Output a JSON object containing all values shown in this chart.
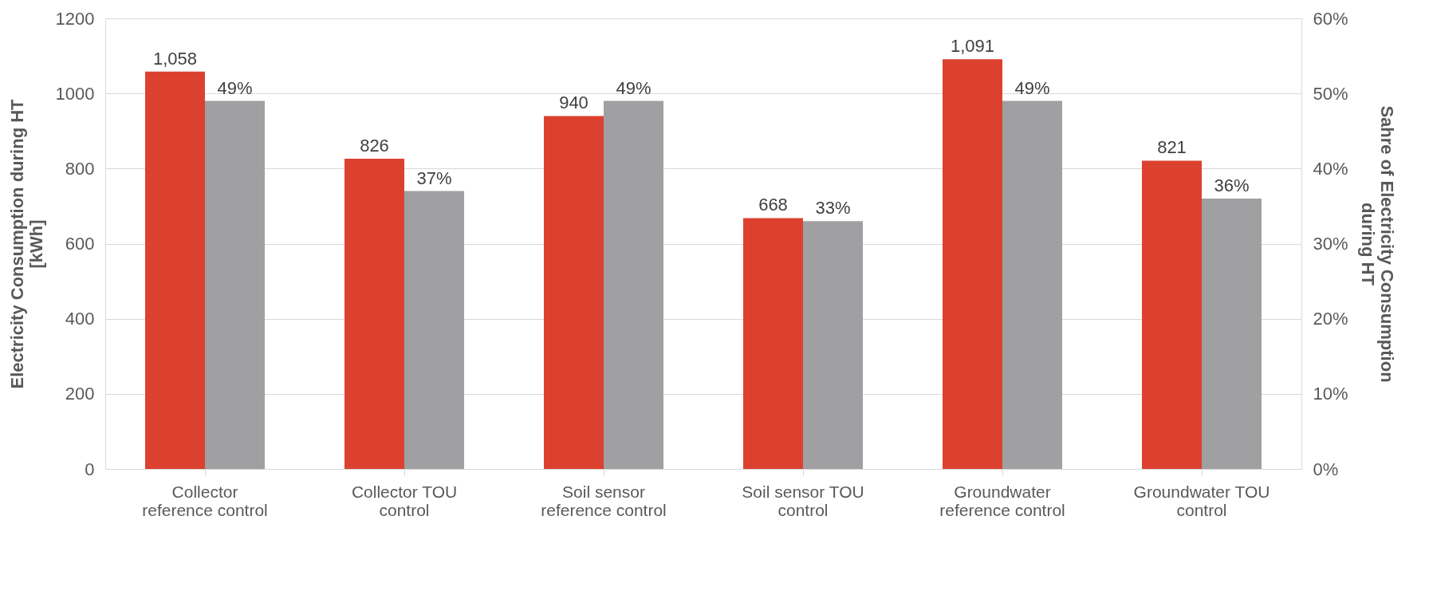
{
  "chart_data": {
    "type": "bar",
    "ylabel": "Electricity Consumption during HT [kWh]",
    "y2label": "Sahre of Electricity Consumption during HT",
    "categories": [
      "Collector reference control",
      "Collector TOU control",
      "Soil sensor reference control",
      "Soil sensor TOU control",
      "Groundwater reference control",
      "Groundwater TOU control"
    ],
    "series": [
      {
        "color": "#dc4130",
        "values": [
          1058,
          826,
          940,
          668,
          1091,
          821
        ],
        "value_labels": [
          "1,058",
          "826",
          "940",
          "668",
          "1,091",
          "821"
        ]
      },
      {
        "color": "#a0a0a2",
        "axis": "y2",
        "values": [
          49,
          37,
          49,
          33,
          49,
          36
        ],
        "value_labels": [
          "49%",
          "37%",
          "49%",
          "33%",
          "49%",
          "36%"
        ]
      }
    ],
    "ylim": [
      0,
      1200
    ],
    "yticks": [
      0,
      200,
      400,
      600,
      800,
      1000,
      1200
    ],
    "y2lim": [
      0,
      60
    ],
    "y2ticks": [
      {
        "value": 0,
        "label": "0%"
      },
      {
        "value": 10,
        "label": "10%"
      },
      {
        "value": 20,
        "label": "20%"
      },
      {
        "value": 30,
        "label": "30%"
      },
      {
        "value": 40,
        "label": "40%"
      },
      {
        "value": 50,
        "label": "50%"
      },
      {
        "value": 60,
        "label": "60%"
      }
    ],
    "grid": "y"
  }
}
